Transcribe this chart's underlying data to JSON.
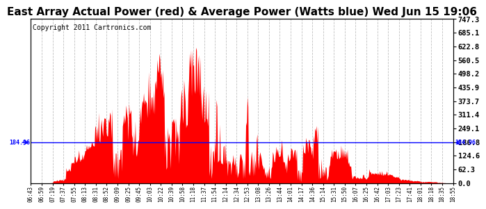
{
  "title": "East Array Actual Power (red) & Average Power (Watts blue) Wed Jun 15 19:06",
  "copyright": "Copyright 2011 Cartronics.com",
  "average_power": 184.96,
  "y_ticks": [
    0.0,
    62.3,
    124.6,
    186.8,
    249.1,
    311.4,
    373.7,
    435.9,
    498.2,
    560.5,
    622.8,
    685.1,
    747.3
  ],
  "y_max": 747.3,
  "y_min": 0.0,
  "x_labels": [
    "06:43",
    "06:59",
    "07:19",
    "07:37",
    "07:55",
    "08:13",
    "08:31",
    "08:52",
    "09:09",
    "09:25",
    "09:45",
    "10:03",
    "10:22",
    "10:39",
    "10:58",
    "11:18",
    "11:37",
    "11:54",
    "12:14",
    "12:34",
    "12:53",
    "13:08",
    "13:26",
    "13:44",
    "14:01",
    "14:17",
    "14:36",
    "15:14",
    "15:31",
    "15:50",
    "16:07",
    "16:25",
    "16:42",
    "17:03",
    "17:23",
    "17:41",
    "18:01",
    "18:18",
    "18:35",
    "18:55"
  ],
  "fill_color": "#FF0000",
  "line_color": "#0000FF",
  "background_color": "#FFFFFF",
  "grid_color": "#C0C0C0",
  "title_fontsize": 11,
  "copyright_fontsize": 7,
  "avg_label": "184.96"
}
